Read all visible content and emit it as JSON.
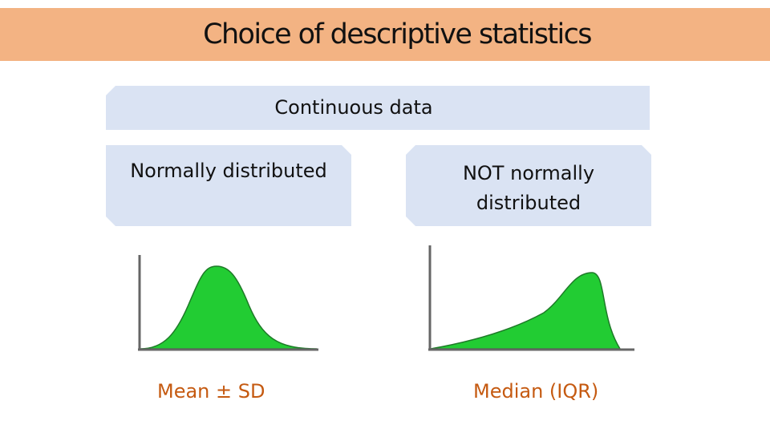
{
  "title": "Choice of descriptive statistics",
  "boxes": {
    "continuous": "Continuous data",
    "normal": "Normally distributed",
    "not_normal": "NOT normally distributed"
  },
  "curves": {
    "normal": "normal-distribution-curve",
    "skewed": "left-skewed-distribution-curve"
  },
  "statistics": {
    "normal": "Mean ± SD",
    "not_normal": "Median (IQR)"
  },
  "colors": {
    "title_bar": "#f3b383",
    "box_fill": "#dae3f3",
    "curve_fill": "#22cc33",
    "statistic_text": "#c55a11"
  }
}
